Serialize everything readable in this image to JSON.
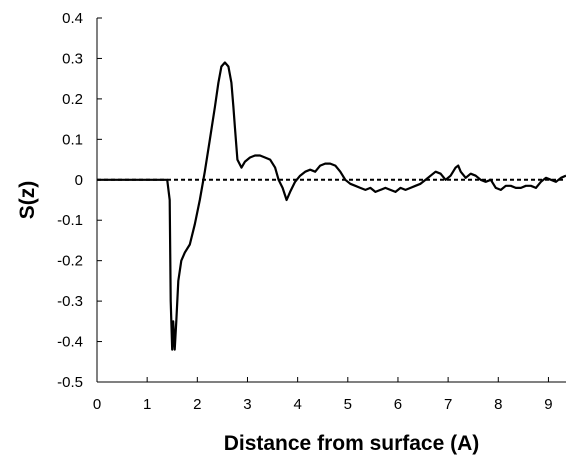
{
  "chart_data": {
    "type": "line",
    "title": "",
    "xlabel": "Distance from surface (A)",
    "ylabel": "S(z)",
    "xlim": [
      0,
      9.35
    ],
    "ylim": [
      -0.5,
      0.4
    ],
    "x_ticks": [
      0,
      1,
      2,
      3,
      4,
      5,
      6,
      7,
      8,
      9
    ],
    "y_ticks": [
      -0.5,
      -0.4,
      -0.3,
      -0.2,
      -0.1,
      0,
      0.1,
      0.2,
      0.3,
      0.4
    ],
    "grid": false,
    "legend": "none",
    "reference_line": {
      "y": 0,
      "style": "dashed"
    },
    "colors": {
      "series": "#000000",
      "axis": "#000000"
    },
    "series": [
      {
        "x": [
          0,
          0.5,
          1.0,
          1.4,
          1.45,
          1.47,
          1.5,
          1.52,
          1.55,
          1.58,
          1.62,
          1.68,
          1.75,
          1.85,
          1.95,
          2.05,
          2.15,
          2.25,
          2.35,
          2.42,
          2.48,
          2.55,
          2.62,
          2.68,
          2.72,
          2.75,
          2.8,
          2.88,
          2.95,
          3.05,
          3.15,
          3.25,
          3.35,
          3.45,
          3.55,
          3.62,
          3.7,
          3.78,
          3.85,
          3.95,
          4.05,
          4.15,
          4.25,
          4.35,
          4.45,
          4.55,
          4.65,
          4.75,
          4.85,
          4.95,
          5.05,
          5.15,
          5.25,
          5.35,
          5.45,
          5.55,
          5.65,
          5.75,
          5.85,
          5.95,
          6.05,
          6.15,
          6.25,
          6.35,
          6.45,
          6.55,
          6.65,
          6.75,
          6.85,
          6.95,
          7.05,
          7.15,
          7.2,
          7.25,
          7.35,
          7.45,
          7.55,
          7.65,
          7.75,
          7.85,
          7.95,
          8.05,
          8.15,
          8.25,
          8.35,
          8.45,
          8.55,
          8.65,
          8.75,
          8.85,
          8.95,
          9.05,
          9.15,
          9.25,
          9.35
        ],
        "y": [
          0,
          0,
          0,
          0,
          -0.05,
          -0.3,
          -0.42,
          -0.35,
          -0.42,
          -0.35,
          -0.25,
          -0.2,
          -0.18,
          -0.16,
          -0.11,
          -0.05,
          0.02,
          0.1,
          0.18,
          0.24,
          0.28,
          0.29,
          0.28,
          0.24,
          0.18,
          0.13,
          0.05,
          0.03,
          0.045,
          0.055,
          0.06,
          0.06,
          0.055,
          0.05,
          0.03,
          0.0,
          -0.02,
          -0.05,
          -0.03,
          -0.005,
          0.01,
          0.02,
          0.025,
          0.02,
          0.035,
          0.04,
          0.04,
          0.035,
          0.02,
          0.0,
          -0.01,
          -0.015,
          -0.02,
          -0.025,
          -0.02,
          -0.03,
          -0.025,
          -0.02,
          -0.025,
          -0.03,
          -0.02,
          -0.025,
          -0.02,
          -0.015,
          -0.01,
          0.0,
          0.01,
          0.02,
          0.015,
          0.0,
          0.01,
          0.03,
          0.035,
          0.02,
          0.005,
          0.015,
          0.01,
          0.0,
          -0.005,
          0.0,
          -0.02,
          -0.025,
          -0.015,
          -0.015,
          -0.02,
          -0.02,
          -0.015,
          -0.015,
          -0.02,
          -0.005,
          0.005,
          0.0,
          -0.005,
          0.005,
          0.01
        ]
      }
    ]
  }
}
